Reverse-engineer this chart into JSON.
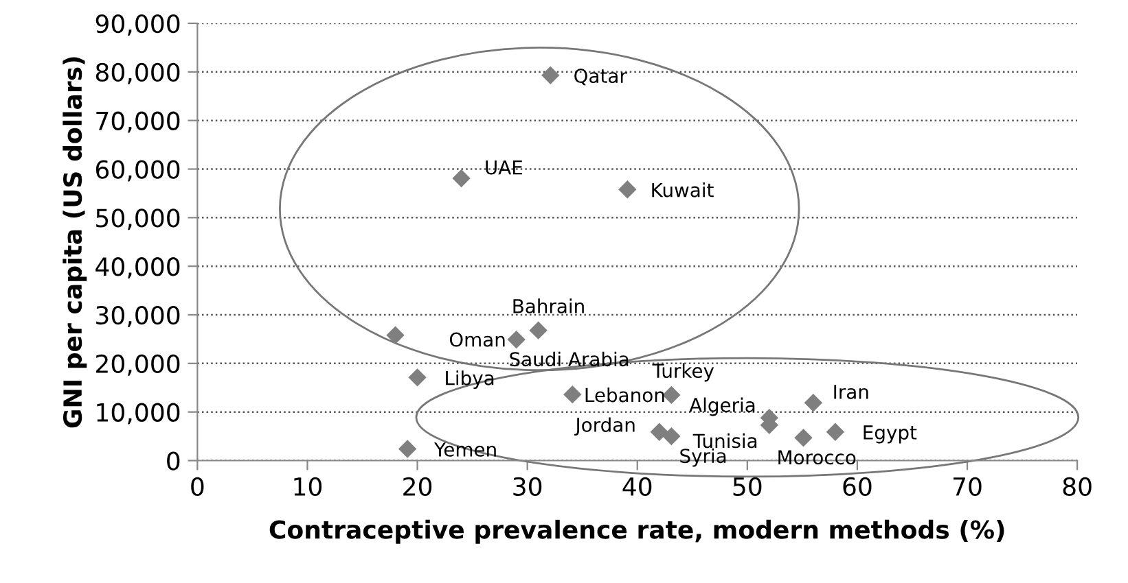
{
  "chart_data": {
    "type": "scatter",
    "xlabel": "Contraceptive prevalence rate, modern methods (%)",
    "ylabel": "GNI per capita (US dollars)",
    "x": [
      32.1,
      24.0,
      39.1,
      31.0,
      18.0,
      29.0,
      20.0,
      19.1,
      34.1,
      43.1,
      42.0,
      43.1,
      52.0,
      52.0,
      56.0,
      58.0,
      55.1
    ],
    "series": [
      {
        "color": "#7f7f7f",
        "values": [
          79300,
          58100,
          55800,
          26800,
          25800,
          24900,
          17100,
          2400,
          13600,
          13500,
          5900,
          5000,
          8800,
          7300,
          11900,
          5900,
          4700
        ]
      }
    ],
    "annotations": [
      {
        "text": "Qatar",
        "x": 32.1,
        "y": 79300
      },
      {
        "text": "UAE",
        "x": 24.0,
        "y": 58100
      },
      {
        "text": "Kuwait",
        "x": 39.1,
        "y": 55800
      },
      {
        "text": "Bahrain",
        "x": 31.0,
        "y": 26800
      },
      {
        "text": "Oman",
        "x": 18.0,
        "y": 25800
      },
      {
        "text": "Saudi Arabia",
        "x": 29.0,
        "y": 24900
      },
      {
        "text": "Libya",
        "x": 20.0,
        "y": 17100
      },
      {
        "text": "Yemen",
        "x": 19.1,
        "y": 2400
      },
      {
        "text": "Lebanon",
        "x": 34.1,
        "y": 13600
      },
      {
        "text": "Turkey",
        "x": 43.1,
        "y": 13500
      },
      {
        "text": "Jordan",
        "x": 42.0,
        "y": 5900
      },
      {
        "text": "Syria",
        "x": 43.1,
        "y": 5000
      },
      {
        "text": "Algeria",
        "x": 52.0,
        "y": 8800
      },
      {
        "text": "Tunisia",
        "x": 52.0,
        "y": 7300
      },
      {
        "text": "Iran",
        "x": 56.0,
        "y": 11900
      },
      {
        "text": "Egypt",
        "x": 58.0,
        "y": 5900
      },
      {
        "text": "Morocco",
        "x": 55.1,
        "y": 4700
      }
    ],
    "xlim": [
      0,
      80
    ],
    "xticks": [
      0,
      10,
      20,
      30,
      40,
      50,
      60,
      70,
      80
    ],
    "ylim": [
      0,
      90000
    ],
    "yticks": [
      {
        "value": 0,
        "label": "0"
      },
      {
        "value": 10000,
        "label": "10,000"
      },
      {
        "value": 20000,
        "label": "20,000"
      },
      {
        "value": 30000,
        "label": "30,000"
      },
      {
        "value": 40000,
        "label": "40,000"
      },
      {
        "value": 50000,
        "label": "50,000"
      },
      {
        "value": 60000,
        "label": "60,000"
      },
      {
        "value": 70000,
        "label": "70,000"
      },
      {
        "value": 80000,
        "label": "80,000"
      },
      {
        "value": 90000,
        "label": "90,000"
      }
    ],
    "grid": "y",
    "marker": "diamond"
  }
}
